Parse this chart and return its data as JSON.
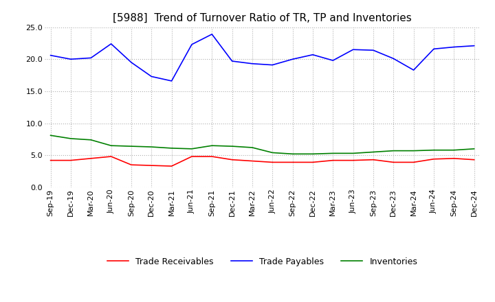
{
  "title": "[5988]  Trend of Turnover Ratio of TR, TP and Inventories",
  "x_labels": [
    "Sep-19",
    "Dec-19",
    "Mar-20",
    "Jun-20",
    "Sep-20",
    "Dec-20",
    "Mar-21",
    "Jun-21",
    "Sep-21",
    "Dec-21",
    "Mar-22",
    "Jun-22",
    "Sep-22",
    "Dec-22",
    "Mar-23",
    "Jun-23",
    "Sep-23",
    "Dec-23",
    "Mar-24",
    "Jun-24",
    "Sep-24",
    "Dec-24"
  ],
  "trade_receivables": [
    4.2,
    4.2,
    4.5,
    4.8,
    3.5,
    3.4,
    3.3,
    4.8,
    4.8,
    4.3,
    4.1,
    3.9,
    3.9,
    3.9,
    4.2,
    4.2,
    4.3,
    3.9,
    3.9,
    4.4,
    4.5,
    4.3
  ],
  "trade_payables": [
    20.6,
    20.0,
    20.2,
    22.4,
    19.5,
    17.3,
    16.6,
    22.3,
    23.9,
    19.7,
    19.3,
    19.1,
    20.0,
    20.7,
    19.8,
    21.5,
    21.4,
    20.1,
    18.3,
    21.6,
    21.9,
    22.1
  ],
  "inventories": [
    8.1,
    7.6,
    7.4,
    6.5,
    6.4,
    6.3,
    6.1,
    6.0,
    6.5,
    6.4,
    6.2,
    5.4,
    5.2,
    5.2,
    5.3,
    5.3,
    5.5,
    5.7,
    5.7,
    5.8,
    5.8,
    6.0
  ],
  "ylim": [
    0.0,
    25.0
  ],
  "yticks": [
    0.0,
    5.0,
    10.0,
    15.0,
    20.0,
    25.0
  ],
  "color_receivables": "#ff0000",
  "color_payables": "#0000ff",
  "color_inventories": "#008000",
  "background_color": "#ffffff",
  "grid_color": "#b0b0b0",
  "title_fontsize": 11,
  "legend_fontsize": 9,
  "tick_fontsize": 8
}
